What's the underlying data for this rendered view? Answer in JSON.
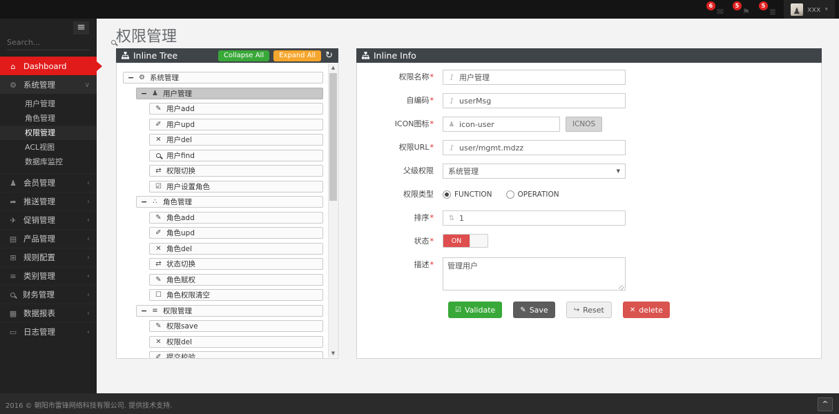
{
  "page": {
    "title": "权限管理"
  },
  "navbar": {
    "notifications": [
      {
        "icon": "envelope",
        "count": "6"
      },
      {
        "icon": "flag",
        "count": "5"
      },
      {
        "icon": "tasks",
        "count": "5"
      }
    ],
    "user_name": "xxx"
  },
  "sidebar": {
    "search_placeholder": "Search...",
    "menu": [
      {
        "icon": "home",
        "label": "Dashboard",
        "active": true
      },
      {
        "icon": "gears",
        "label": "系统管理",
        "expanded": true,
        "children": [
          {
            "label": "用户管理"
          },
          {
            "label": "角色管理"
          },
          {
            "label": "权限管理",
            "active": true
          },
          {
            "label": "ACL视图"
          },
          {
            "label": "数据库监控"
          }
        ]
      },
      {
        "icon": "user",
        "label": "会员管理"
      },
      {
        "icon": "share",
        "label": "推送管理"
      },
      {
        "icon": "plane",
        "label": "促销管理"
      },
      {
        "icon": "book",
        "label": "产品管理"
      },
      {
        "icon": "table",
        "label": "规则配置"
      },
      {
        "icon": "list",
        "label": "类别管理"
      },
      {
        "icon": "magnifier",
        "label": "财务管理"
      },
      {
        "icon": "chart",
        "label": "数据报表"
      },
      {
        "icon": "folder",
        "label": "日志管理"
      }
    ]
  },
  "tree_panel": {
    "title": "Inline Tree",
    "collapse_all": "Collapse All",
    "expand_all": "Expand All",
    "nodes": [
      {
        "level": 0,
        "expander": true,
        "icon": "gears",
        "label": "系统管理"
      },
      {
        "level": 1,
        "expander": true,
        "icon": "user",
        "label": "用户管理",
        "selected": true
      },
      {
        "level": 2,
        "icon": "pencil",
        "label": "用户add"
      },
      {
        "level": 2,
        "icon": "edit",
        "label": "用户upd"
      },
      {
        "level": 2,
        "icon": "close",
        "label": "用户del"
      },
      {
        "level": 2,
        "icon": "magnifier",
        "label": "用户find"
      },
      {
        "level": 2,
        "icon": "retweet",
        "label": "权限切换"
      },
      {
        "level": 2,
        "icon": "check-square",
        "label": "用户设置角色"
      },
      {
        "level": 1,
        "expander": true,
        "icon": "sitemap",
        "label": "角色管理"
      },
      {
        "level": 2,
        "icon": "pencil",
        "label": "角色add"
      },
      {
        "level": 2,
        "icon": "edit",
        "label": "角色upd"
      },
      {
        "level": 2,
        "icon": "close",
        "label": "角色del"
      },
      {
        "level": 2,
        "icon": "retweet",
        "label": "状态切换"
      },
      {
        "level": 2,
        "icon": "pencil",
        "label": "角色赋权"
      },
      {
        "level": 2,
        "icon": "square",
        "label": "角色权限清空"
      },
      {
        "level": 1,
        "expander": true,
        "icon": "list",
        "label": "权限管理"
      },
      {
        "level": 2,
        "icon": "pencil",
        "label": "权限save"
      },
      {
        "level": 2,
        "icon": "close",
        "label": "权限del"
      },
      {
        "level": 2,
        "icon": "edit",
        "label": "提交校验"
      }
    ]
  },
  "info_panel": {
    "title": "Inline Info",
    "fields": [
      {
        "label": "权限名称",
        "required": true,
        "type": "text",
        "icon": "italic",
        "value": "用户管理"
      },
      {
        "label": "自编码",
        "required": true,
        "type": "text",
        "icon": "italic",
        "value": "userMsg"
      },
      {
        "label": "ICON图标",
        "required": true,
        "type": "text-button",
        "icon": "user",
        "value": "icon-user",
        "button_label": "ICNOS"
      },
      {
        "label": "权限URL",
        "required": true,
        "type": "text",
        "icon": "italic",
        "value": "user/mgmt.mdzz"
      },
      {
        "label": "父级权限",
        "required": false,
        "type": "select",
        "value": "系统管理"
      },
      {
        "label": "权限类型",
        "required": false,
        "type": "radios",
        "options": [
          {
            "label": "FUNCTION",
            "checked": true
          },
          {
            "label": "OPERATION",
            "checked": false
          }
        ]
      },
      {
        "label": "排序",
        "required": true,
        "type": "text",
        "icon": "sort",
        "value": "1"
      },
      {
        "label": "状态",
        "required": true,
        "type": "toggle",
        "on_label": "ON"
      },
      {
        "label": "描述",
        "required": true,
        "type": "textarea",
        "value": "管理用户"
      }
    ],
    "buttons": [
      {
        "icon": "check-square",
        "label": "Validate",
        "style": "green"
      },
      {
        "icon": "pencil",
        "label": "Save",
        "style": "dark"
      },
      {
        "icon": "reply",
        "label": "Reset",
        "style": "light"
      },
      {
        "icon": "close",
        "label": "delete",
        "style": "red"
      }
    ]
  },
  "footer": {
    "text": "2016 © 朝阳市雷锋网络科技有限公司. 提供技术支持."
  },
  "colors": {
    "accent_red": "#e11a1a",
    "collapse_green": "#38a838",
    "expand_orange": "#f6a62d",
    "panel_header": "#3f4449",
    "toggle_on_red": "#df4e4e",
    "delete_red": "#d9534f"
  }
}
